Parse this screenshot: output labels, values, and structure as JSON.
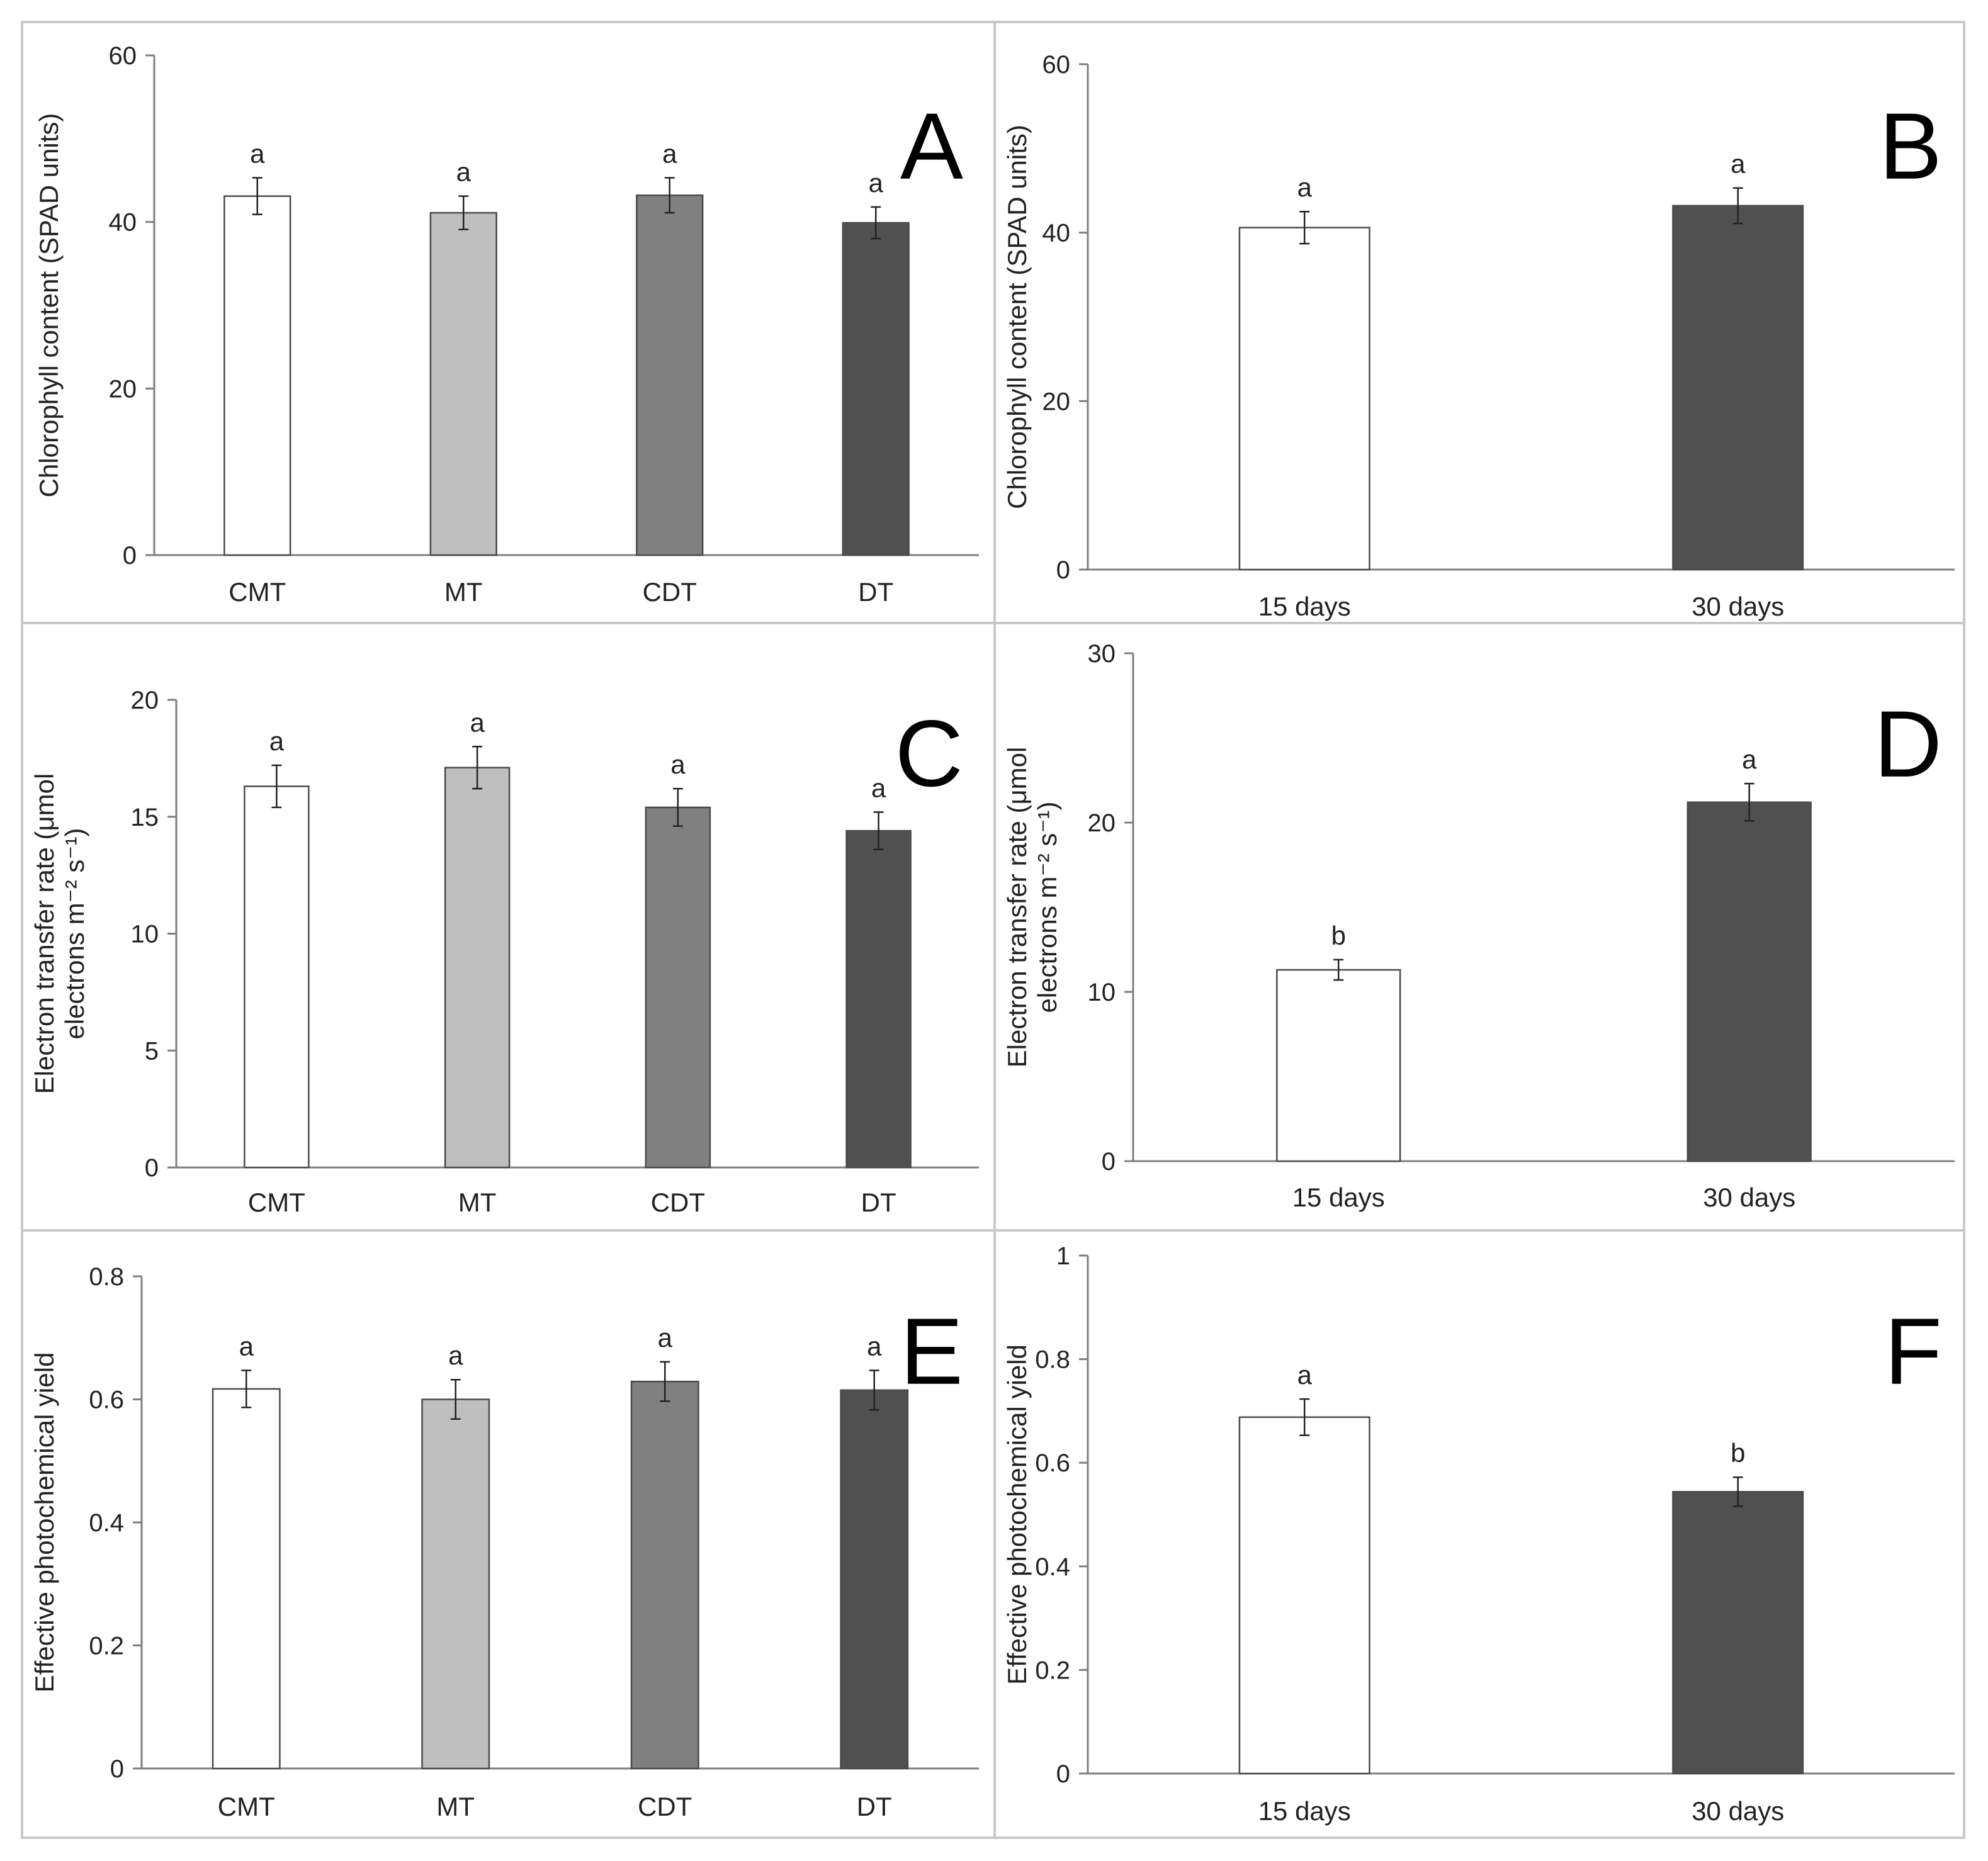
{
  "colors": {
    "frame": "#c8c8c8",
    "axis": "#7f7f7f",
    "bar_outline": "#4a4a4a",
    "errorbar": "#222222",
    "white": "#ffffff",
    "light_gray": "#bfbfbf",
    "mid_gray": "#808080",
    "dark_gray": "#505050"
  },
  "chart_data": [
    {
      "panel": "A",
      "type": "bar",
      "ylabel_lines": [
        "Chlorophyll content (SPAD units)"
      ],
      "categories": [
        "CMT",
        "MT",
        "CDT",
        "DT"
      ],
      "values": [
        43.1,
        41.1,
        43.2,
        39.9
      ],
      "errors": [
        2.2,
        2.0,
        2.1,
        1.9
      ],
      "letters": [
        "a",
        "a",
        "a",
        "a"
      ],
      "fills": [
        "white",
        "light_gray",
        "mid_gray",
        "dark_gray"
      ],
      "ylim": [
        0,
        60
      ],
      "yticks": [
        0,
        20,
        40,
        60
      ],
      "ytick_labels": [
        "0",
        "20",
        "40",
        "60"
      ]
    },
    {
      "panel": "B",
      "type": "bar",
      "ylabel_lines": [
        "Chlorophyll content (SPAD units)"
      ],
      "categories": [
        "15 days",
        "30 days"
      ],
      "values": [
        40.6,
        43.2
      ],
      "errors": [
        1.9,
        2.1
      ],
      "letters": [
        "a",
        "a"
      ],
      "fills": [
        "white",
        "dark_gray"
      ],
      "ylim": [
        0,
        60
      ],
      "yticks": [
        0,
        20,
        40,
        60
      ],
      "ytick_labels": [
        "0",
        "20",
        "40",
        "60"
      ]
    },
    {
      "panel": "C",
      "type": "bar",
      "ylabel_lines": [
        "Electron transfer rate (μmol",
        "electrons m⁻² s⁻¹)"
      ],
      "categories": [
        "CMT",
        "MT",
        "CDT",
        "DT"
      ],
      "values": [
        16.3,
        17.1,
        15.4,
        14.4
      ],
      "errors": [
        0.9,
        0.9,
        0.8,
        0.8
      ],
      "letters": [
        "a",
        "a",
        "a",
        "a"
      ],
      "fills": [
        "white",
        "light_gray",
        "mid_gray",
        "dark_gray"
      ],
      "ylim": [
        0,
        20
      ],
      "yticks": [
        0,
        5,
        10,
        15,
        20
      ],
      "ytick_labels": [
        "0",
        "5",
        "10",
        "15",
        "20"
      ]
    },
    {
      "panel": "D",
      "type": "bar",
      "ylabel_lines": [
        "Electron transfer rate (μmol",
        "electrons m⁻² s⁻¹)"
      ],
      "categories": [
        "15 days",
        "30 days"
      ],
      "values": [
        11.3,
        21.2
      ],
      "errors": [
        0.6,
        1.1
      ],
      "letters": [
        "b",
        "a"
      ],
      "fills": [
        "white",
        "dark_gray"
      ],
      "ylim": [
        0,
        30
      ],
      "yticks": [
        0,
        10,
        20,
        30
      ],
      "ytick_labels": [
        "0",
        "10",
        "20",
        "30"
      ]
    },
    {
      "panel": "E",
      "type": "bar",
      "ylabel_lines": [
        "Effective photochemical yield"
      ],
      "categories": [
        "CMT",
        "MT",
        "CDT",
        "DT"
      ],
      "values": [
        0.617,
        0.6,
        0.629,
        0.615
      ],
      "errors": [
        0.03,
        0.032,
        0.032,
        0.032
      ],
      "letters": [
        "a",
        "a",
        "a",
        "a"
      ],
      "fills": [
        "white",
        "light_gray",
        "mid_gray",
        "dark_gray"
      ],
      "ylim": [
        0,
        0.8
      ],
      "yticks": [
        0,
        0.2,
        0.4,
        0.6,
        0.8
      ],
      "ytick_labels": [
        "0",
        "0.2",
        "0.4",
        "0.6",
        "0.8"
      ]
    },
    {
      "panel": "F",
      "type": "bar",
      "ylabel_lines": [
        "Effective photochemical yield"
      ],
      "categories": [
        "15 days",
        "30 days"
      ],
      "values": [
        0.688,
        0.544
      ],
      "errors": [
        0.035,
        0.028
      ],
      "letters": [
        "a",
        "b"
      ],
      "fills": [
        "white",
        "dark_gray"
      ],
      "ylim": [
        0,
        1
      ],
      "yticks": [
        0,
        0.2,
        0.4,
        0.6,
        0.8,
        1
      ],
      "ytick_labels": [
        "0",
        "0.2",
        "0.4",
        "0.6",
        "0.8",
        "1"
      ]
    }
  ]
}
